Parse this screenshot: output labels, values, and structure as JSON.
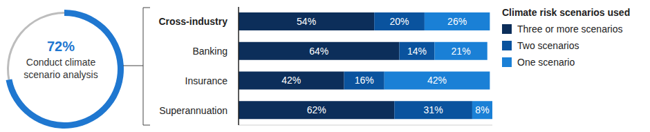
{
  "chart_data": [
    {
      "type": "pie",
      "categories": [
        "Conduct climate scenario analysis",
        null
      ],
      "values": [
        72,
        28
      ],
      "value_labels": [
        "72%",
        null
      ],
      "colors": [
        "#1f77d0",
        "#bdbdbd"
      ]
    },
    {
      "type": "bar",
      "orientation": "horizontal",
      "stacked": true,
      "data_labels": true,
      "tick_labels": "y",
      "grid": false,
      "legend": "right",
      "legend_title": "Climate risk scenarios used",
      "categories": [
        "Cross-industry",
        "Banking",
        "Insurance",
        "Superannuation"
      ],
      "xlim": [
        0,
        101
      ],
      "series": [
        {
          "name": "Three or more scenarios",
          "color": "#0c2e5a",
          "values": [
            54,
            64,
            42,
            62
          ],
          "value_labels": [
            "54%",
            "64%",
            "42%",
            "62%"
          ]
        },
        {
          "name": "Two scenarios",
          "color": "#0a539e",
          "values": [
            20,
            14,
            16,
            31
          ],
          "value_labels": [
            "20%",
            "14%",
            "16%",
            "31%"
          ]
        },
        {
          "name": "One scenario",
          "color": "#1a80d6",
          "values": [
            26,
            21,
            42,
            8
          ],
          "value_labels": [
            "26%",
            "21%",
            "42%",
            "8%"
          ]
        }
      ]
    }
  ]
}
